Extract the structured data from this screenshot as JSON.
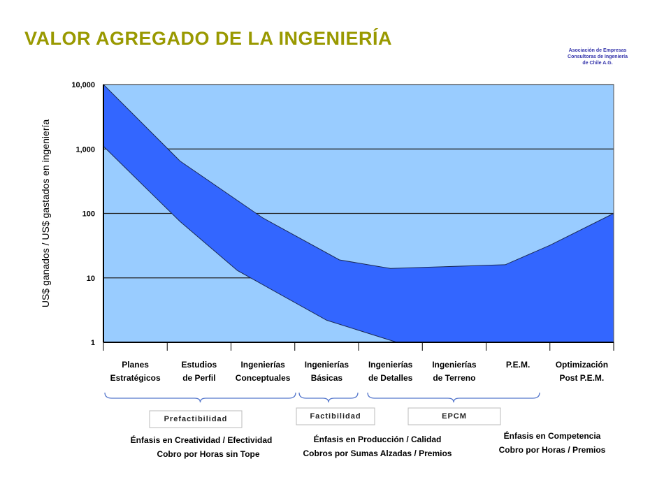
{
  "slide": {
    "title": "VALOR AGREGADO DE LA INGENIERÍA",
    "org_lines": [
      "Asociación de Empresas",
      "Consultoras de Ingeniería",
      "de Chile A.G."
    ]
  },
  "colors": {
    "title": "#999900",
    "plot_background": "#99ccff",
    "band_fill": "#3366ff",
    "gridline": "#222222",
    "org_text": "#3333aa"
  },
  "chart_data": {
    "type": "area",
    "title": "",
    "xlabel": "",
    "ylabel": "US$ ganados / US$ gastados en ingeniería",
    "y_scale": "log",
    "ylim": [
      1,
      10000
    ],
    "y_ticks": [
      1,
      10,
      100,
      1000,
      10000
    ],
    "y_tick_labels": [
      "1",
      "10",
      "100",
      "1,000",
      "10,000"
    ],
    "grid": true,
    "x_range": [
      0,
      8
    ],
    "x_ticks": [
      0,
      1,
      2,
      3,
      4,
      5,
      6,
      7,
      8
    ],
    "categories": [
      [
        "Planes",
        "Estratégicos"
      ],
      [
        "Estudios",
        "de Perfil"
      ],
      [
        "Ingenierías",
        "Conceptuales"
      ],
      [
        "Ingenierías",
        "Básicas"
      ],
      [
        "Ingenierías",
        "de Detalles"
      ],
      [
        "Ingenierías",
        "de Terreno"
      ],
      [
        "P.E.M."
      ],
      [
        "Optimización",
        "Post P.E.M."
      ]
    ],
    "series": [
      {
        "role": "upper",
        "x": [
          0,
          1.2,
          2.5,
          3.7,
          4.5,
          6.3,
          7.0,
          8.0
        ],
        "y": [
          10000,
          650,
          85,
          19,
          14,
          16,
          32,
          100
        ]
      },
      {
        "role": "lower",
        "x": [
          0,
          1.2,
          2.1,
          3.5,
          4.6,
          8.0
        ],
        "y": [
          1100,
          75,
          13,
          2.2,
          1,
          1
        ]
      }
    ]
  },
  "groups": [
    {
      "box_label": "Prefactibilidad",
      "emphasis": [
        "Énfasis en Creatividad / Efectividad",
        "Cobro por Horas sin Tope"
      ]
    },
    {
      "box_label": "Factibilidad",
      "emphasis": [
        "Énfasis en Producción / Calidad",
        "Cobros por Sumas Alzadas / Premios"
      ]
    },
    {
      "box_label": "EPCM",
      "emphasis": [
        "Énfasis en Competencia",
        "Cobro por Horas / Premios"
      ]
    }
  ]
}
